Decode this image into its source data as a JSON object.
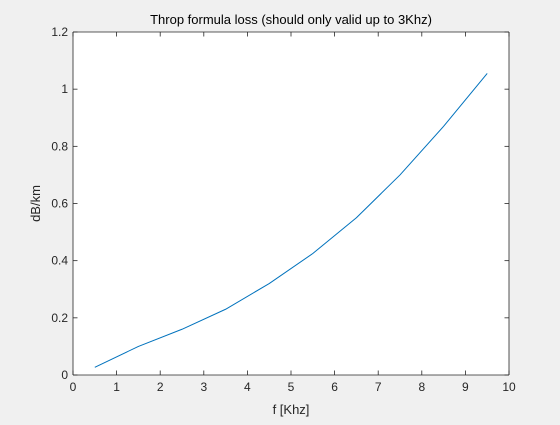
{
  "chart_data": {
    "type": "line",
    "title": "Throp formula loss (should only valid up to 3Khz)",
    "xlabel": "f [Khz]",
    "ylabel": "dB/km",
    "xlim": [
      0,
      10
    ],
    "ylim": [
      0,
      1.2
    ],
    "xticks": [
      "0",
      "1",
      "2",
      "3",
      "4",
      "5",
      "6",
      "7",
      "8",
      "9",
      "10"
    ],
    "yticks": [
      "0",
      "0.2",
      "0.4",
      "0.6",
      "0.8",
      "1",
      "1.2"
    ],
    "grid": false,
    "series": [
      {
        "color": "#0072bd",
        "x": [
          0.5,
          1.5,
          2.5,
          3.5,
          4.5,
          5.5,
          6.5,
          7.5,
          8.5,
          9.5
        ],
        "y": [
          0.027,
          0.1,
          0.16,
          0.23,
          0.32,
          0.425,
          0.55,
          0.7,
          0.87,
          1.055
        ]
      }
    ]
  },
  "colors": {
    "figure_background": "#f0f0f0",
    "axes_background": "#ffffff",
    "axis_color": "#262626",
    "line_color": "#0072bd"
  }
}
